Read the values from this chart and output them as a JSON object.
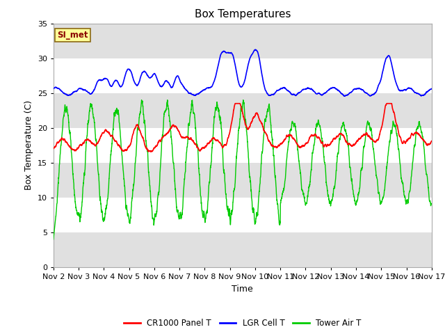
{
  "title": "Box Temperatures",
  "xlabel": "Time",
  "ylabel": "Box Temperature (C)",
  "xlim": [
    0,
    15
  ],
  "ylim": [
    0,
    35
  ],
  "yticks": [
    0,
    5,
    10,
    15,
    20,
    25,
    30,
    35
  ],
  "xtick_labels": [
    "Nov 2",
    "Nov 3",
    "Nov 4",
    "Nov 5",
    "Nov 6",
    "Nov 7",
    "Nov 8",
    "Nov 9",
    "Nov 10",
    "Nov 11",
    "Nov 12",
    "Nov 13",
    "Nov 14",
    "Nov 15",
    "Nov 16",
    "Nov 17"
  ],
  "xtick_positions": [
    0,
    1,
    2,
    3,
    4,
    5,
    6,
    7,
    8,
    9,
    10,
    11,
    12,
    13,
    14,
    15
  ],
  "band_color_dark": "#e0e0e0",
  "bg_color": "#ffffff",
  "annotation_text": "SI_met",
  "annotation_bg": "#ffff99",
  "annotation_border": "#8b6914",
  "annotation_text_color": "#8b0000",
  "legend_entries": [
    "CR1000 Panel T",
    "LGR Cell T",
    "Tower Air T"
  ],
  "legend_colors": [
    "#ff0000",
    "#0000ff",
    "#00cc00"
  ],
  "title_fontsize": 11,
  "axis_label_fontsize": 9,
  "tick_fontsize": 8,
  "figsize": [
    6.4,
    4.8
  ],
  "dpi": 100
}
